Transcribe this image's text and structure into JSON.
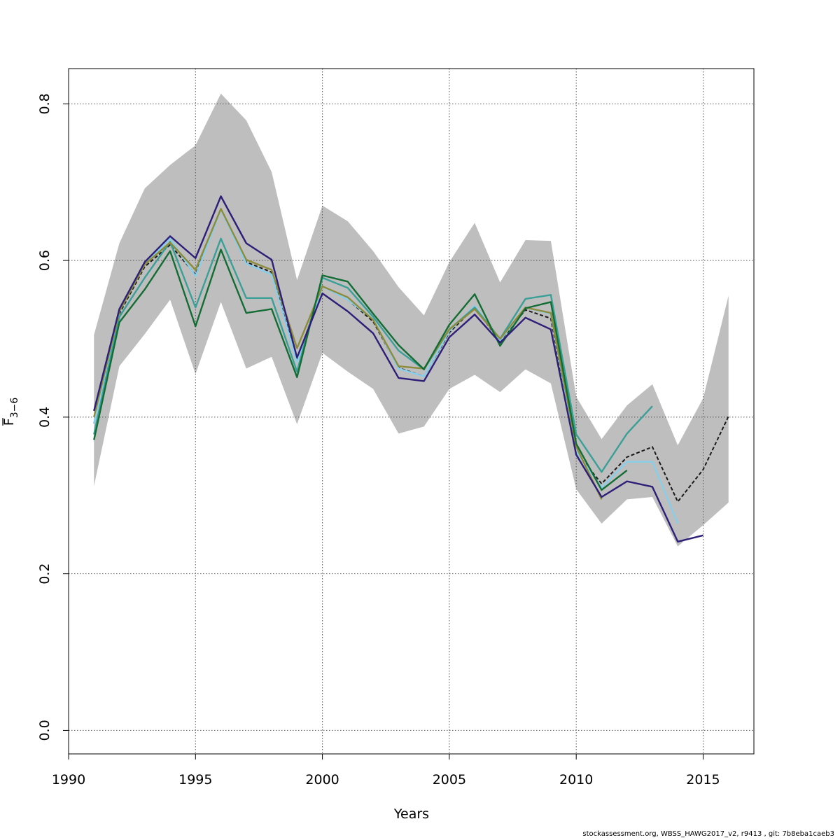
{
  "chart_data": {
    "type": "line",
    "xlabel": "Years",
    "ylabel_main": "F",
    "ylabel_sub": "3−6",
    "xlim": [
      1990,
      2017
    ],
    "ylim": [
      -0.03,
      0.845
    ],
    "x_ticks": [
      1990,
      1995,
      2000,
      2005,
      2010,
      2015
    ],
    "y_ticks": [
      0.0,
      0.2,
      0.4,
      0.6,
      0.8
    ],
    "x_tick_labels": [
      "1990",
      "1995",
      "2000",
      "2005",
      "2010",
      "2015"
    ],
    "y_tick_labels": [
      "0.0",
      "0.2",
      "0.4",
      "0.6",
      "0.8"
    ],
    "grid": true,
    "band": {
      "color": "#bebebe",
      "x": [
        1991,
        1992,
        1993,
        1994,
        1995,
        1996,
        1997,
        1998,
        1999,
        2000,
        2001,
        2002,
        2003,
        2004,
        2005,
        2006,
        2007,
        2008,
        2009,
        2010,
        2011,
        2012,
        2013,
        2014,
        2015,
        2016
      ],
      "upper": [
        0.505,
        0.622,
        0.692,
        0.722,
        0.747,
        0.813,
        0.779,
        0.713,
        0.575,
        0.67,
        0.65,
        0.612,
        0.566,
        0.53,
        0.598,
        0.648,
        0.572,
        0.626,
        0.625,
        0.426,
        0.372,
        0.415,
        0.442,
        0.364,
        0.424,
        0.555
      ],
      "lower": [
        0.312,
        0.465,
        0.506,
        0.55,
        0.455,
        0.547,
        0.462,
        0.477,
        0.391,
        0.482,
        0.458,
        0.436,
        0.379,
        0.388,
        0.436,
        0.454,
        0.432,
        0.461,
        0.443,
        0.308,
        0.264,
        0.295,
        0.298,
        0.235,
        0.262,
        0.291
      ]
    },
    "series": [
      {
        "color": "#1a1a1a",
        "dashed": true,
        "x": [
          1991,
          1992,
          1993,
          1994,
          1995,
          1996,
          1997,
          1998,
          1999,
          2000,
          2001,
          2002,
          2003,
          2004,
          2005,
          2006,
          2007,
          2008,
          2009,
          2010,
          2011,
          2012,
          2013,
          2014,
          2015,
          2016
        ],
        "y": [
          0.392,
          0.532,
          0.592,
          0.62,
          0.582,
          0.665,
          0.598,
          0.585,
          0.472,
          0.567,
          0.55,
          0.522,
          0.463,
          0.452,
          0.508,
          0.54,
          0.497,
          0.537,
          0.526,
          0.355,
          0.315,
          0.349,
          0.362,
          0.292,
          0.333,
          0.401
        ]
      },
      {
        "color": "#87ceeb",
        "x": [
          1991,
          1992,
          1993,
          1994,
          1995,
          1996,
          1997,
          1998,
          1999,
          2000,
          2001,
          2002,
          2003,
          2004,
          2005,
          2006,
          2007,
          2008,
          2009,
          2010,
          2011,
          2012,
          2013,
          2014
        ],
        "y": [
          0.392,
          0.535,
          0.595,
          0.628,
          0.58,
          0.665,
          0.596,
          0.582,
          0.47,
          0.567,
          0.55,
          0.525,
          0.462,
          0.452,
          0.51,
          0.542,
          0.498,
          0.54,
          0.532,
          0.356,
          0.31,
          0.343,
          0.343,
          0.264
        ]
      },
      {
        "color": "#3a9f96",
        "x": [
          1991,
          1992,
          1993,
          1994,
          1995,
          1996,
          1997,
          1998,
          1999,
          2000,
          2001,
          2002,
          2003,
          2004,
          2005,
          2006,
          2007,
          2008,
          2009,
          2010,
          2011,
          2012,
          2013
        ],
        "y": [
          0.378,
          0.528,
          0.578,
          0.624,
          0.54,
          0.628,
          0.552,
          0.552,
          0.458,
          0.578,
          0.565,
          0.528,
          0.485,
          0.461,
          0.512,
          0.54,
          0.5,
          0.551,
          0.556,
          0.378,
          0.33,
          0.379,
          0.414
        ]
      },
      {
        "color": "#8b8b3a",
        "x": [
          1991,
          1992,
          1993,
          1994,
          1995,
          1996,
          1997,
          1998,
          1999,
          2000,
          2001,
          2002,
          2003,
          2004,
          2005,
          2006,
          2007,
          2008,
          2009,
          2010,
          2011
        ],
        "y": [
          0.4,
          0.535,
          0.595,
          0.623,
          0.588,
          0.666,
          0.601,
          0.588,
          0.488,
          0.567,
          0.553,
          0.524,
          0.465,
          0.462,
          0.512,
          0.538,
          0.5,
          0.54,
          0.533,
          0.362,
          0.295
        ]
      },
      {
        "color": "#136c33",
        "x": [
          1991,
          1992,
          1993,
          1994,
          1995,
          1996,
          1997,
          1998,
          1999,
          2000,
          2001,
          2002,
          2003,
          2004,
          2005,
          2006,
          2007,
          2008,
          2009,
          2010,
          2011,
          2012
        ],
        "y": [
          0.371,
          0.521,
          0.563,
          0.612,
          0.516,
          0.614,
          0.533,
          0.538,
          0.451,
          0.581,
          0.573,
          0.532,
          0.492,
          0.461,
          0.518,
          0.557,
          0.491,
          0.539,
          0.547,
          0.366,
          0.307,
          0.332
        ]
      },
      {
        "color": "#2e1e78",
        "x": [
          1991,
          1992,
          1993,
          1994,
          1995,
          1996,
          1997,
          1998,
          1999,
          2000,
          2001,
          2002,
          2003,
          2004,
          2005,
          2006,
          2007,
          2008,
          2009,
          2010,
          2011,
          2012,
          2013,
          2014,
          2015
        ],
        "y": [
          0.408,
          0.538,
          0.598,
          0.631,
          0.603,
          0.682,
          0.622,
          0.601,
          0.476,
          0.558,
          0.535,
          0.507,
          0.45,
          0.446,
          0.502,
          0.531,
          0.495,
          0.527,
          0.512,
          0.352,
          0.298,
          0.318,
          0.311,
          0.241,
          0.249
        ]
      }
    ]
  },
  "footer": {
    "text": "stockassessment.org, WBSS_HAWG2017_v2, r9413 , git: 7b8eba1caeb3"
  }
}
